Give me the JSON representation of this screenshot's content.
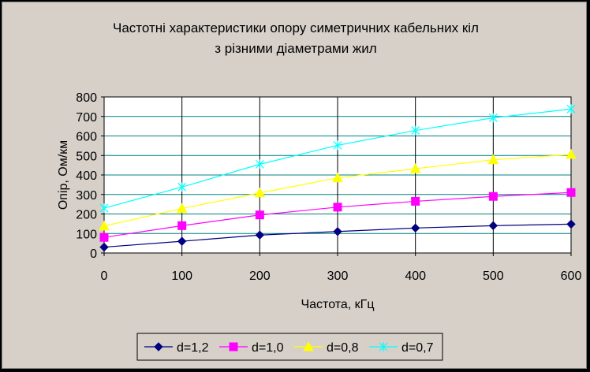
{
  "chart_data": {
    "type": "line",
    "title": [
      "Частотні характеристики опору симетричних кабельних кіл",
      "з різними діаметрами жил"
    ],
    "xlabel": "Частота, кГц",
    "ylabel": "Опір, Ом/км",
    "x": [
      0,
      100,
      200,
      300,
      400,
      500,
      600
    ],
    "xlim": [
      0,
      600
    ],
    "ylim": [
      0,
      800
    ],
    "xticks": [
      "0",
      "100",
      "200",
      "300",
      "400",
      "500",
      "600"
    ],
    "yticks": [
      "0",
      "100",
      "200",
      "300",
      "400",
      "500",
      "600",
      "700",
      "800"
    ],
    "grid": true,
    "legend_position": "bottom",
    "plot_background": "#ffffff",
    "series": [
      {
        "name": "d=1,2",
        "color": "#000080",
        "marker": "diamond",
        "values": [
          30,
          60,
          92,
          110,
          128,
          140,
          148
        ]
      },
      {
        "name": "d=1,0",
        "color": "#ff00ff",
        "marker": "square",
        "values": [
          80,
          140,
          195,
          235,
          265,
          290,
          310
        ]
      },
      {
        "name": "d=0,8",
        "color": "#ffff00",
        "marker": "triangle",
        "values": [
          138,
          228,
          308,
          385,
          432,
          478,
          505
        ]
      },
      {
        "name": "d=0,7",
        "color": "#00ffff",
        "marker": "x",
        "values": [
          230,
          338,
          455,
          552,
          628,
          693,
          738
        ]
      }
    ]
  }
}
